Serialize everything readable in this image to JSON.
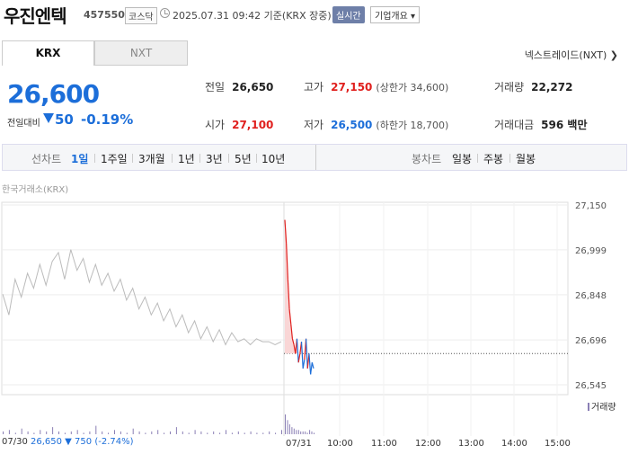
{
  "header": {
    "stock_name": "우진엔텍",
    "stock_code": "457550",
    "market_tag": "코스닥",
    "datetime": "2025.07.31 09:42 기준(KRX 장중)",
    "realtime_label": "실시간",
    "company_button": "기업개요 ▾"
  },
  "tabs": {
    "krx": "KRX",
    "nxt": "NXT",
    "nxt_link": "넥스트레이드(NXT) ❯"
  },
  "price": {
    "current": "26,600",
    "change_label": "전일대비",
    "change_amount": "50",
    "change_rate": "-0.19%"
  },
  "stats": {
    "prev_close_label": "전일",
    "prev_close": "26,650",
    "high_label": "고가",
    "high": "27,150",
    "upper_limit": "(상한가 34,600)",
    "volume_label": "거래량",
    "volume": "22,272",
    "open_label": "시가",
    "open": "27,100",
    "low_label": "저가",
    "low": "26,500",
    "lower_limit": "(하한가 18,700)",
    "amount_label": "거래대금",
    "amount": "596 백만"
  },
  "period_bar": {
    "line_chart": "선차트",
    "d1": "1일",
    "w1": "1주일",
    "m3": "3개월",
    "y1": "1년",
    "y3": "3년",
    "y5": "5년",
    "y10": "10년",
    "candle_chart": "봉차트",
    "daily": "일봉",
    "weekly": "주봉",
    "monthly": "월봉"
  },
  "chart_labels": {
    "exchange": "한국거래소(KRX)",
    "volume_legend": "거래량",
    "bottom_date": "07/30",
    "bottom_price": "26,650 ▼ 750 (-2.74%)"
  },
  "colors": {
    "up": "#e0201e",
    "down": "#1c6ed9",
    "prev": "#bbbbbb",
    "volume": "#8a7fb5"
  },
  "chart_data": {
    "type": "line",
    "y_ticks": [
      "27,150",
      "26,999",
      "26,848",
      "26,696",
      "26,545"
    ],
    "ylim": [
      26545,
      27150
    ],
    "x_labels": [
      "07/30",
      "07/31",
      "10:00",
      "11:00",
      "12:00",
      "13:00",
      "14:00",
      "15:00"
    ],
    "prev_close": 26650,
    "series": [
      {
        "values": [
          26850,
          26780,
          26900,
          26840,
          26920,
          26870,
          26950,
          26880,
          26960,
          26990,
          26900,
          27000,
          26930,
          26970,
          26890,
          26950,
          26880,
          26920,
          26860,
          26900,
          26830,
          26870,
          26800,
          26840,
          26780,
          26820,
          26760,
          26800,
          26740,
          26780,
          26720,
          26760,
          26700,
          26740,
          26690,
          26730,
          26680,
          26720,
          26690,
          26700,
          26680,
          26700,
          26690,
          26690,
          26680,
          26690
        ]
      },
      {
        "values": [
          27100,
          27020,
          26900,
          26800,
          26750,
          26700,
          26680,
          26650,
          26700,
          26620,
          26650,
          26690,
          26600,
          26630,
          26700,
          26600,
          26650,
          26580,
          26620,
          26600
        ]
      }
    ],
    "volume": [
      2,
      3,
      1,
      4,
      2,
      1,
      3,
      2,
      5,
      2,
      1,
      2,
      3,
      1,
      2,
      6,
      2,
      1,
      3,
      2,
      1,
      4,
      2,
      1,
      2,
      3,
      1,
      2,
      5,
      2,
      1,
      3,
      2,
      1,
      2,
      1,
      3,
      1,
      2,
      1,
      2,
      1,
      1,
      2,
      1,
      3,
      14,
      10,
      7,
      5,
      4,
      3,
      3,
      2,
      2,
      2,
      1,
      3,
      2,
      1
    ]
  }
}
